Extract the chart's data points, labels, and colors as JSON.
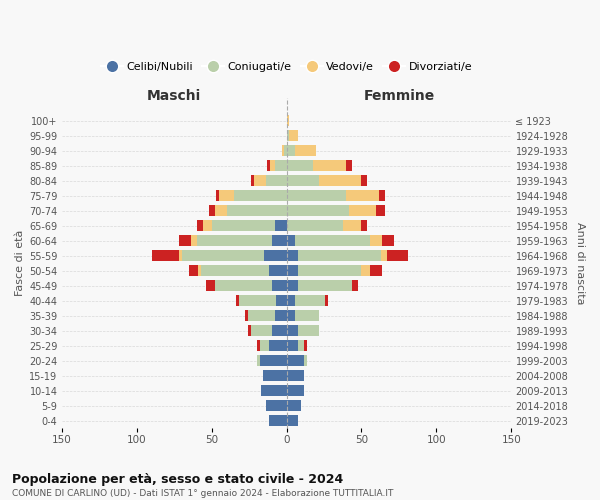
{
  "age_groups": [
    "0-4",
    "5-9",
    "10-14",
    "15-19",
    "20-24",
    "25-29",
    "30-34",
    "35-39",
    "40-44",
    "45-49",
    "50-54",
    "55-59",
    "60-64",
    "65-69",
    "70-74",
    "75-79",
    "80-84",
    "85-89",
    "90-94",
    "95-99",
    "100+"
  ],
  "birth_years": [
    "2019-2023",
    "2014-2018",
    "2009-2013",
    "2004-2008",
    "1999-2003",
    "1994-1998",
    "1989-1993",
    "1984-1988",
    "1979-1983",
    "1974-1978",
    "1969-1973",
    "1964-1968",
    "1959-1963",
    "1954-1958",
    "1949-1953",
    "1944-1948",
    "1939-1943",
    "1934-1938",
    "1929-1933",
    "1924-1928",
    "≤ 1923"
  ],
  "colors": {
    "celibi": "#4C72A4",
    "coniugati": "#BACFAA",
    "vedovi": "#F5C97A",
    "divorziati": "#CC2222"
  },
  "males": {
    "celibi": [
      12,
      14,
      17,
      16,
      18,
      12,
      10,
      8,
      7,
      10,
      12,
      15,
      10,
      8,
      0,
      0,
      0,
      0,
      0,
      0,
      0
    ],
    "coniugati": [
      0,
      0,
      0,
      0,
      2,
      6,
      14,
      18,
      25,
      38,
      45,
      55,
      50,
      42,
      40,
      35,
      14,
      8,
      2,
      0,
      0
    ],
    "vedovi": [
      0,
      0,
      0,
      0,
      0,
      0,
      0,
      0,
      0,
      0,
      2,
      2,
      4,
      6,
      8,
      10,
      8,
      3,
      1,
      0,
      0
    ],
    "divorziati": [
      0,
      0,
      0,
      0,
      0,
      2,
      2,
      2,
      2,
      6,
      6,
      18,
      8,
      4,
      4,
      2,
      2,
      2,
      0,
      0,
      0
    ]
  },
  "females": {
    "celibi": [
      8,
      10,
      12,
      12,
      12,
      8,
      8,
      6,
      6,
      8,
      8,
      8,
      6,
      0,
      0,
      0,
      0,
      0,
      0,
      0,
      0
    ],
    "coniugati": [
      0,
      0,
      0,
      0,
      2,
      4,
      14,
      16,
      20,
      36,
      42,
      55,
      50,
      38,
      42,
      40,
      22,
      18,
      6,
      2,
      0
    ],
    "vedovi": [
      0,
      0,
      0,
      0,
      0,
      0,
      0,
      0,
      0,
      0,
      6,
      4,
      8,
      12,
      18,
      22,
      28,
      22,
      14,
      6,
      2
    ],
    "divorziati": [
      0,
      0,
      0,
      0,
      0,
      2,
      0,
      0,
      2,
      4,
      8,
      14,
      8,
      4,
      6,
      4,
      4,
      4,
      0,
      0,
      0
    ]
  },
  "title": "Popolazione per età, sesso e stato civile - 2024",
  "subtitle": "COMUNE DI CARLINO (UD) - Dati ISTAT 1° gennaio 2024 - Elaborazione TUTTITALIA.IT",
  "xlabel_left": "Maschi",
  "xlabel_right": "Femmine",
  "ylabel_left": "Fasce di età",
  "ylabel_right": "Anni di nascita",
  "xlim": 150,
  "legend_labels": [
    "Celibi/Nubili",
    "Coniugati/e",
    "Vedovi/e",
    "Divorziati/e"
  ],
  "background_color": "#f8f8f8",
  "grid_color": "#cccccc"
}
